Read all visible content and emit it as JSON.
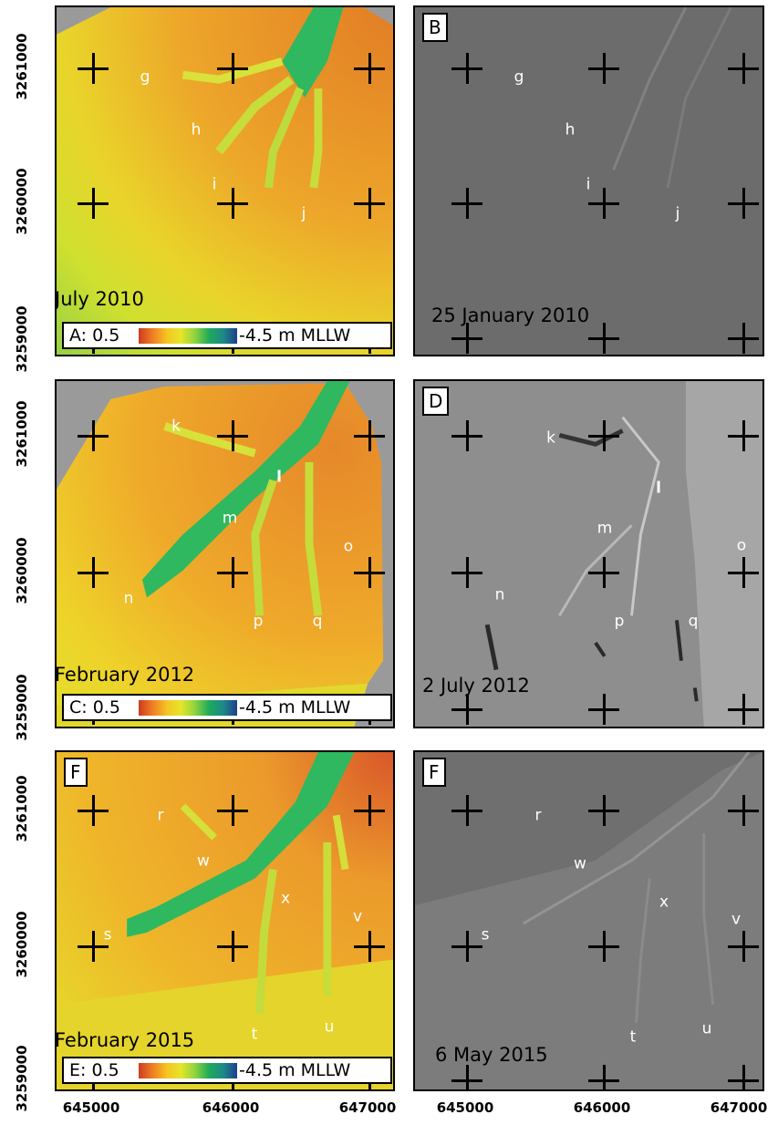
{
  "panels": [
    {
      "bathymetry": {
        "date_label": "July 2010",
        "legend": {
          "letter": "A:",
          "min_label": "0.5",
          "max_label": "-4.5 m MLLW"
        },
        "channel_labels": [
          "g",
          "h",
          "i",
          "j"
        ]
      },
      "sonar": {
        "letter": "B",
        "date_label": "25 January  2010",
        "channel_labels": [
          "g",
          "h",
          "i",
          "j"
        ]
      }
    },
    {
      "bathymetry": {
        "date_label": "February 2012",
        "legend": {
          "letter": "C:",
          "min_label": "0.5",
          "max_label": "-4.5 m MLLW"
        },
        "channel_labels": [
          "k",
          "l",
          "m",
          "n",
          "o",
          "p",
          "q"
        ]
      },
      "sonar": {
        "letter": "D",
        "date_label": "2 July 2012",
        "channel_labels": [
          "k",
          "l",
          "m",
          "n",
          "o",
          "p",
          "q"
        ]
      }
    },
    {
      "bathymetry": {
        "letter": "F",
        "date_label": "February 2015",
        "legend": {
          "letter": "E:",
          "min_label": "0.5",
          "max_label": "-4.5 m MLLW"
        },
        "channel_labels": [
          "r",
          "w",
          "x",
          "v",
          "s",
          "t",
          "u"
        ]
      },
      "sonar": {
        "letter": "F",
        "date_label": "6 May 2015",
        "channel_labels": [
          "r",
          "w",
          "x",
          "v",
          "s",
          "t",
          "u"
        ]
      }
    }
  ],
  "axes": {
    "y_ticks": [
      "3261000",
      "3260000",
      "3259000"
    ],
    "x_ticks": [
      "645000",
      "646000",
      "647000"
    ]
  },
  "colorbar_colors": [
    "#cc3b22",
    "#f07e23",
    "#f5c522",
    "#e6e52a",
    "#8fd43d",
    "#1faa5a",
    "#1d8a87",
    "#1f3f8c"
  ]
}
